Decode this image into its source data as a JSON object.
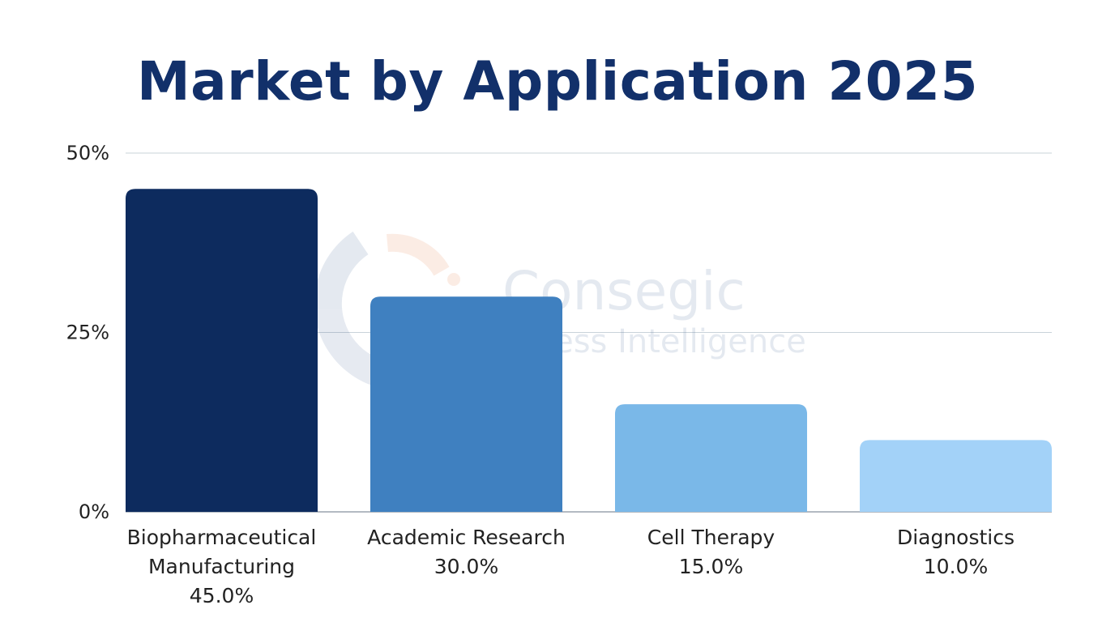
{
  "chart_data": {
    "type": "bar",
    "title": "Market by Application 2025",
    "xlabel": "",
    "ylabel": "",
    "ylim": [
      0,
      50
    ],
    "yticks": [
      0,
      25,
      50
    ],
    "ytick_labels": [
      "0%",
      "25%",
      "50%"
    ],
    "grid": true,
    "categories": [
      [
        "Biopharmaceutical",
        "Manufacturing"
      ],
      [
        "Academic Research"
      ],
      [
        "Cell Therapy"
      ],
      [
        "Diagnostics"
      ]
    ],
    "values": [
      45.0,
      30.0,
      15.0,
      10.0
    ],
    "data_labels": [
      "45.0%",
      "30.0%",
      "15.0%",
      "10.0%"
    ],
    "colors": [
      "#0d2b5e",
      "#3f80c0",
      "#7ab8e8",
      "#a3d2f8"
    ]
  },
  "watermark": {
    "line1": "Consegic",
    "line2": "Business Intelligence"
  }
}
